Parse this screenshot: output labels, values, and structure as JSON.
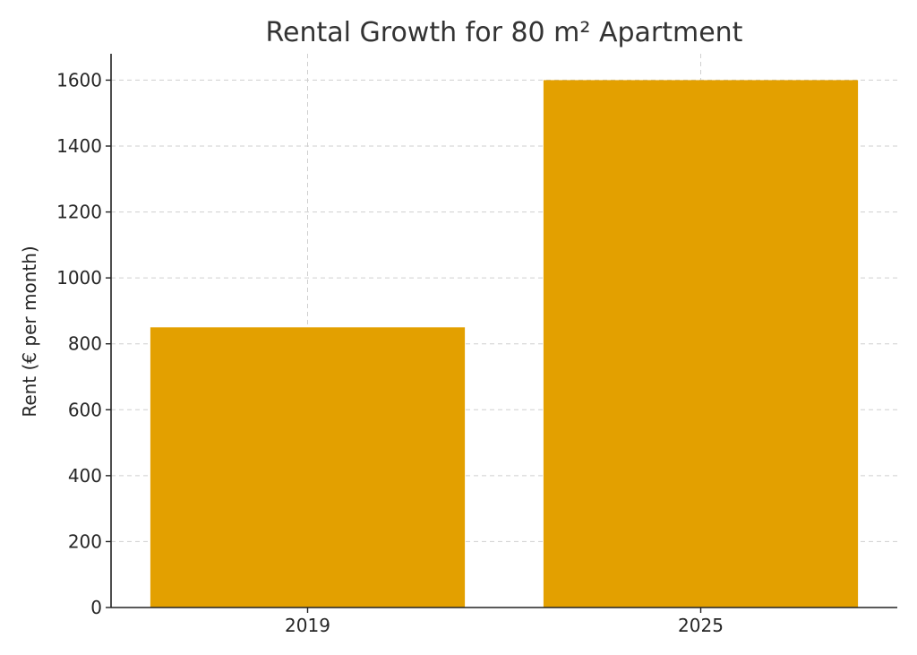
{
  "chart_data": {
    "type": "bar",
    "title": "Rental Growth for 80 m² Apartment",
    "xlabel": "",
    "ylabel": "Rent (€ per month)",
    "categories": [
      "2019",
      "2025"
    ],
    "values": [
      850,
      1600
    ],
    "ylim": [
      0,
      1680
    ],
    "yticks": [
      0,
      200,
      400,
      600,
      800,
      1000,
      1200,
      1400,
      1600
    ],
    "grid": true,
    "bar_color": "#E3A000",
    "legend": "none"
  }
}
